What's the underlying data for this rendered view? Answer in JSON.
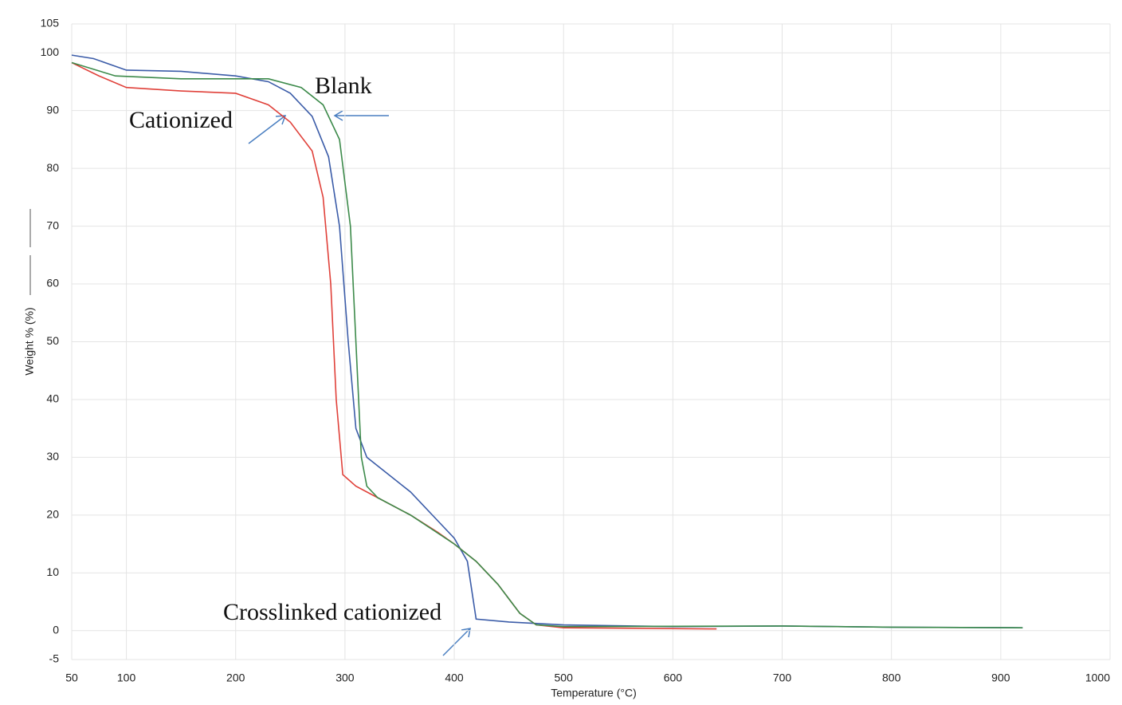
{
  "chart_data": {
    "type": "line",
    "x_label": "Temperature (°C)",
    "y_label": "Weight % (%)",
    "xlim": [
      50,
      1000
    ],
    "xticks": [
      50,
      100,
      200,
      300,
      400,
      500,
      600,
      700,
      800,
      900,
      1000
    ],
    "ylim": [
      -5,
      105
    ],
    "yticks": [
      -5,
      0,
      10,
      20,
      30,
      40,
      50,
      60,
      70,
      80,
      90,
      100,
      105
    ],
    "grid": true,
    "series": [
      {
        "name": "Crosslinked cationized",
        "color": "#3b5ca8",
        "x": [
          50,
          70,
          100,
          150,
          200,
          230,
          250,
          270,
          285,
          295,
          303,
          310,
          320,
          340,
          360,
          380,
          400,
          412,
          420,
          450,
          500,
          600,
          700,
          800,
          920
        ],
        "values": [
          99.6,
          99,
          97,
          96.8,
          96,
          95,
          93,
          89,
          82,
          70,
          50,
          35,
          30,
          27,
          24,
          20,
          16,
          12,
          2,
          1.5,
          1,
          0.7,
          0.8,
          0.6,
          0.5
        ]
      },
      {
        "name": "Cationized",
        "color": "#e0413a",
        "x": [
          50,
          75,
          100,
          150,
          200,
          230,
          250,
          270,
          280,
          287,
          292,
          298,
          310,
          330,
          360,
          385,
          400,
          420,
          440,
          460,
          475,
          500,
          640
        ],
        "values": [
          98.3,
          96,
          94,
          93.4,
          93,
          91,
          88,
          83,
          75,
          60,
          40,
          27,
          25,
          23,
          20,
          17,
          15,
          12,
          8,
          3,
          1,
          0.5,
          0.3
        ]
      },
      {
        "name": "Blank",
        "color": "#3c8a4a",
        "x": [
          50,
          90,
          150,
          230,
          260,
          280,
          295,
          305,
          310,
          315,
          320,
          330,
          360,
          400,
          420,
          440,
          460,
          475,
          500,
          700,
          800,
          920
        ],
        "values": [
          98.3,
          96,
          95.5,
          95.5,
          94,
          91,
          85,
          70,
          50,
          30,
          25,
          23,
          20,
          15,
          12,
          8,
          3,
          1,
          0.7,
          0.8,
          0.6,
          0.5
        ]
      }
    ]
  }
}
